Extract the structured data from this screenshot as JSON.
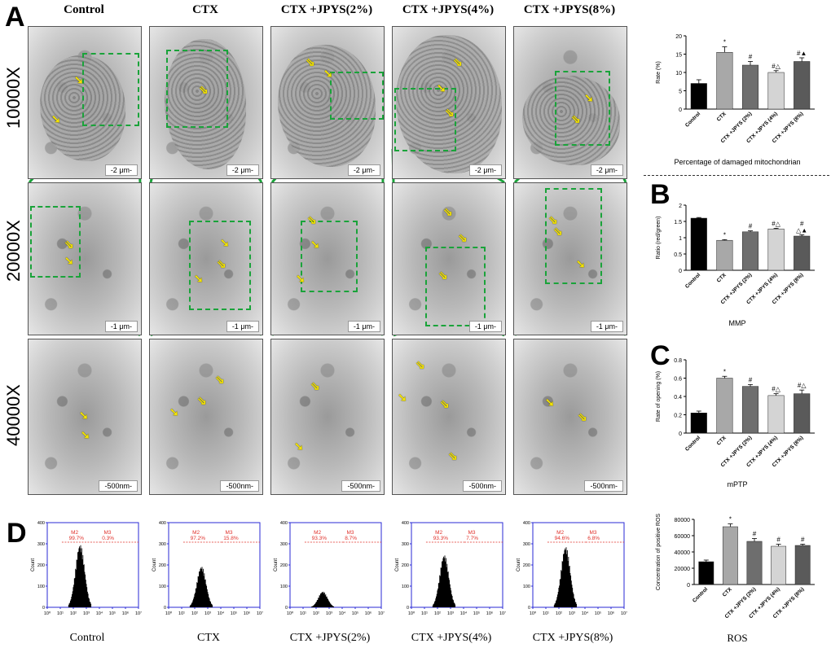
{
  "panels": {
    "A": "A",
    "B": "B",
    "C": "C",
    "D": "D"
  },
  "columns": [
    "Control",
    "CTX",
    "CTX +JPYS(2%)",
    "CTX +JPYS(4%)",
    "CTX +JPYS(8%)"
  ],
  "rows": [
    "10000X",
    "20000X",
    "40000X"
  ],
  "scalebars": {
    "r1": "-2 μm-",
    "r2": "-1 μm-",
    "r3": "-500nm-"
  },
  "colors": {
    "zoom_lines": "#1aa33a",
    "arrows": "#f2e200",
    "flow_axis": "#2a2ad6",
    "flow_marker": "#e0302a"
  },
  "chart_data": [
    {
      "type": "bar",
      "title": "Percentage of damaged mitochondrian",
      "ylabel": "Rate (%)",
      "categories": [
        "Control",
        "CTX",
        "CTX +JPYS (2%)",
        "CTX +JPYS (4%)",
        "CTX +JPYS (8%)"
      ],
      "values": [
        7,
        15.5,
        12,
        10,
        13
      ],
      "errors": [
        1,
        1.5,
        1,
        0.5,
        1
      ],
      "annotations": [
        "",
        "*",
        "#",
        "#△",
        "#▲"
      ],
      "ylim": [
        0,
        20
      ],
      "yticks": [
        0,
        5,
        10,
        15,
        20
      ]
    },
    {
      "type": "bar",
      "title": "MMP",
      "ylabel": "Ratio (red/green)",
      "categories": [
        "Control",
        "CTX",
        "CTX +JPYS (2%)",
        "CTX +JPYS (4%)",
        "CTX +JPYS (8%)"
      ],
      "values": [
        1.6,
        0.92,
        1.18,
        1.27,
        1.05
      ],
      "errors": [
        0.02,
        0.02,
        0.03,
        0.02,
        0.04
      ],
      "annotations": [
        "",
        "*",
        "#",
        "#△",
        "#\n△▲"
      ],
      "ylim": [
        0,
        2.0
      ],
      "yticks": [
        0,
        0.5,
        1.0,
        1.5,
        2.0
      ]
    },
    {
      "type": "bar",
      "title": "mPTP",
      "ylabel": "Rate of opening (%)",
      "categories": [
        "Control",
        "CTX",
        "CTX +JPYS (2%)",
        "CTX +JPYS (4%)",
        "CTX +JPYS (8%)"
      ],
      "values": [
        0.22,
        0.6,
        0.51,
        0.41,
        0.43
      ],
      "errors": [
        0.02,
        0.02,
        0.02,
        0.02,
        0.04
      ],
      "annotations": [
        "",
        "*",
        "#",
        "#△",
        "#△"
      ],
      "ylim": [
        0,
        0.8
      ],
      "yticks": [
        0,
        0.2,
        0.4,
        0.6,
        0.8
      ]
    },
    {
      "type": "bar",
      "title": "ROS",
      "ylabel": "Concentration of positive ROS",
      "categories": [
        "Control",
        "CTX",
        "CTX +JPYS (2%)",
        "CTX +JPYS (4%)",
        "CTX +JPYS (8%)"
      ],
      "values": [
        28000,
        71000,
        53000,
        47000,
        48000
      ],
      "errors": [
        2000,
        3500,
        3500,
        2500,
        1500
      ],
      "annotations": [
        "",
        "*",
        "#",
        "#",
        "#"
      ],
      "ylim": [
        0,
        80000
      ],
      "yticks": [
        0,
        20000,
        40000,
        60000,
        80000
      ]
    }
  ],
  "flow": {
    "ylabel": "Count",
    "yticks": [
      "0",
      "100",
      "200",
      "300",
      "400"
    ],
    "xticks": [
      "10⁰",
      "10¹",
      "10²",
      "10³",
      "10⁴",
      "10⁵",
      "10⁶",
      "10⁷"
    ],
    "plots": [
      {
        "label": "Control",
        "m2": "M2",
        "m2v": "99.7%",
        "m3": "M3",
        "m3v": "0.3%",
        "peak": 300
      },
      {
        "label": "CTX",
        "m2": "M2",
        "m2v": "97.2%",
        "m3": "M3",
        "m3v": "15.8%",
        "peak": 195
      },
      {
        "label": "CTX +JPYS(2%)",
        "m2": "M2",
        "m2v": "93.3%",
        "m3": "M3",
        "m3v": "8.7%",
        "peak": 75
      },
      {
        "label": "CTX +JPYS(4%)",
        "m2": "M2",
        "m2v": "93.3%",
        "m3": "M3",
        "m3v": "7.7%",
        "peak": 250
      },
      {
        "label": "CTX +JPYS(8%)",
        "m2": "M2",
        "m2v": "94.6%",
        "m3": "M3",
        "m3v": "6.8%",
        "peak": 290
      }
    ]
  }
}
